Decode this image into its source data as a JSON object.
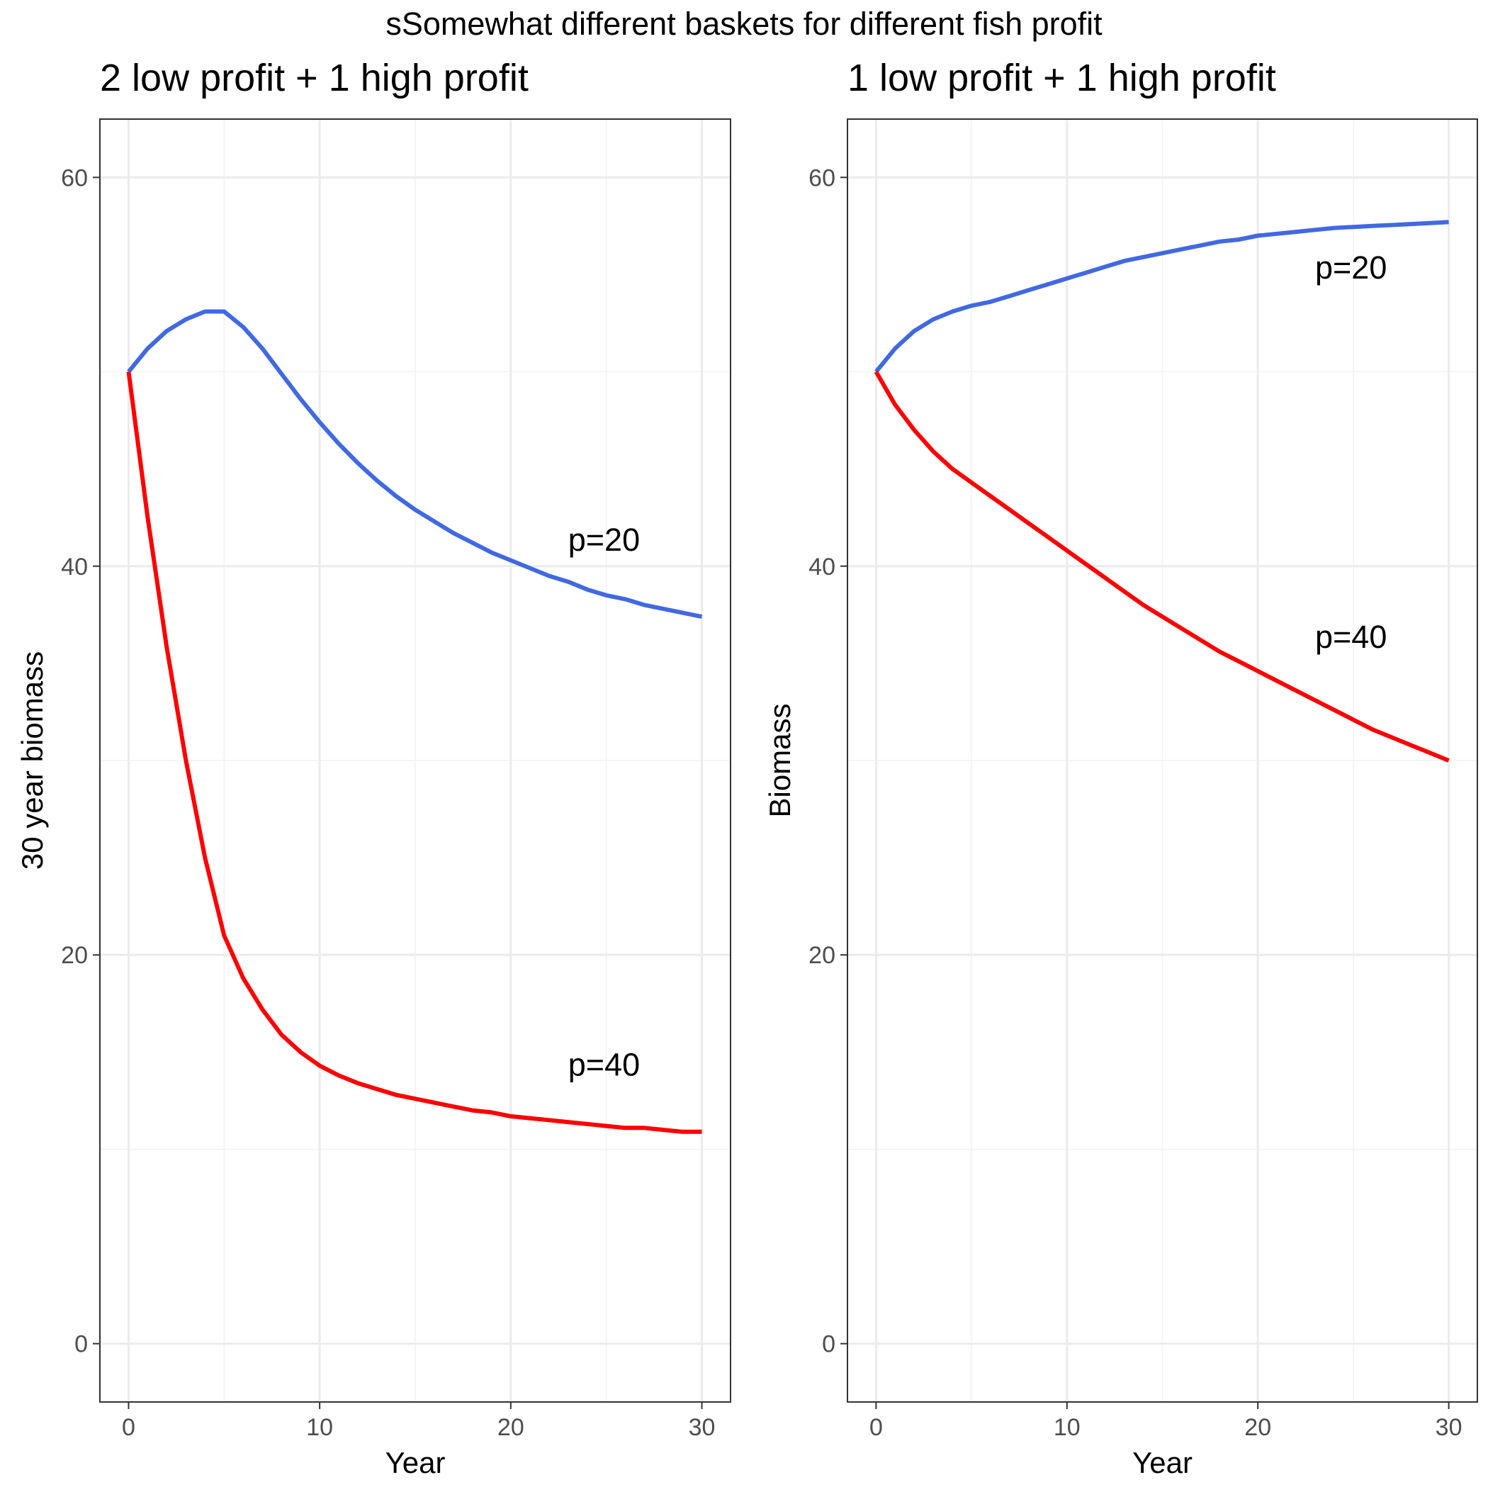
{
  "title": "sSomewhat different baskets for different fish profit",
  "chart_data": [
    {
      "type": "line",
      "title": "2 low profit + 1 high profit",
      "xlabel": "Year",
      "ylabel": "30 year biomass",
      "xlim": [
        -1.5,
        31.5
      ],
      "ylim": [
        -3,
        63
      ],
      "xticks": [
        0,
        10,
        20,
        30
      ],
      "yticks": [
        0,
        20,
        40,
        60
      ],
      "xtick_labels": [
        "0",
        "10",
        "20",
        "30"
      ],
      "ytick_labels": [
        "0",
        "20",
        "40",
        "60"
      ],
      "grid": true,
      "series": [
        {
          "color": "#4169E1",
          "x": [
            0,
            1,
            2,
            3,
            4,
            5,
            6,
            7,
            8,
            9,
            10,
            11,
            12,
            13,
            14,
            15,
            16,
            17,
            18,
            19,
            20,
            21,
            22,
            23,
            24,
            25,
            26,
            27,
            28,
            29,
            30
          ],
          "y": [
            50.0,
            51.2,
            52.1,
            52.7,
            53.1,
            53.1,
            52.3,
            51.2,
            49.9,
            48.6,
            47.4,
            46.3,
            45.3,
            44.4,
            43.6,
            42.9,
            42.3,
            41.7,
            41.2,
            40.7,
            40.3,
            39.9,
            39.5,
            39.2,
            38.8,
            38.5,
            38.3,
            38.0,
            37.8,
            37.6,
            37.4
          ],
          "label": "p=20",
          "label_pos": [
            23,
            40.8
          ]
        },
        {
          "color": "#FF0000",
          "x": [
            0,
            1,
            2,
            3,
            4,
            5,
            6,
            7,
            8,
            9,
            10,
            11,
            12,
            13,
            14,
            15,
            16,
            17,
            18,
            19,
            20,
            21,
            22,
            23,
            24,
            25,
            26,
            27,
            28,
            29,
            30
          ],
          "y": [
            50.0,
            42.5,
            35.8,
            30.0,
            25.0,
            21.0,
            18.8,
            17.2,
            15.9,
            15.0,
            14.3,
            13.8,
            13.4,
            13.1,
            12.8,
            12.6,
            12.4,
            12.2,
            12.0,
            11.9,
            11.7,
            11.6,
            11.5,
            11.4,
            11.3,
            11.2,
            11.1,
            11.1,
            11.0,
            10.9,
            10.9
          ],
          "label": "p=40",
          "label_pos": [
            23,
            13.8
          ]
        }
      ]
    },
    {
      "type": "line",
      "title": "1 low profit + 1 high profit",
      "xlabel": "Year",
      "ylabel": "Biomass",
      "xlim": [
        -1.5,
        31.5
      ],
      "ylim": [
        -3,
        63
      ],
      "xticks": [
        0,
        10,
        20,
        30
      ],
      "yticks": [
        0,
        20,
        40,
        60
      ],
      "xtick_labels": [
        "0",
        "10",
        "20",
        "30"
      ],
      "ytick_labels": [
        "0",
        "20",
        "40",
        "60"
      ],
      "grid": true,
      "series": [
        {
          "color": "#4169E1",
          "x": [
            0,
            1,
            2,
            3,
            4,
            5,
            6,
            7,
            8,
            9,
            10,
            11,
            12,
            13,
            14,
            15,
            16,
            17,
            18,
            19,
            20,
            21,
            22,
            23,
            24,
            25,
            26,
            27,
            28,
            29,
            30
          ],
          "y": [
            50.0,
            51.2,
            52.1,
            52.7,
            53.1,
            53.4,
            53.6,
            53.9,
            54.2,
            54.5,
            54.8,
            55.1,
            55.4,
            55.7,
            55.9,
            56.1,
            56.3,
            56.5,
            56.7,
            56.8,
            57.0,
            57.1,
            57.2,
            57.3,
            57.4,
            57.45,
            57.5,
            57.55,
            57.6,
            57.65,
            57.7
          ],
          "label": "p=20",
          "label_pos": [
            23,
            54.8
          ]
        },
        {
          "color": "#FF0000",
          "x": [
            0,
            1,
            2,
            3,
            4,
            5,
            6,
            7,
            8,
            9,
            10,
            11,
            12,
            13,
            14,
            15,
            16,
            17,
            18,
            19,
            20,
            21,
            22,
            23,
            24,
            25,
            26,
            27,
            28,
            29,
            30
          ],
          "y": [
            50.0,
            48.3,
            47.0,
            45.9,
            45.0,
            44.3,
            43.6,
            42.9,
            42.2,
            41.5,
            40.8,
            40.1,
            39.4,
            38.7,
            38.0,
            37.4,
            36.8,
            36.2,
            35.6,
            35.1,
            34.6,
            34.1,
            33.6,
            33.1,
            32.6,
            32.1,
            31.6,
            31.2,
            30.8,
            30.4,
            30.0
          ],
          "label": "p=40",
          "label_pos": [
            23,
            35.8
          ]
        }
      ]
    }
  ]
}
